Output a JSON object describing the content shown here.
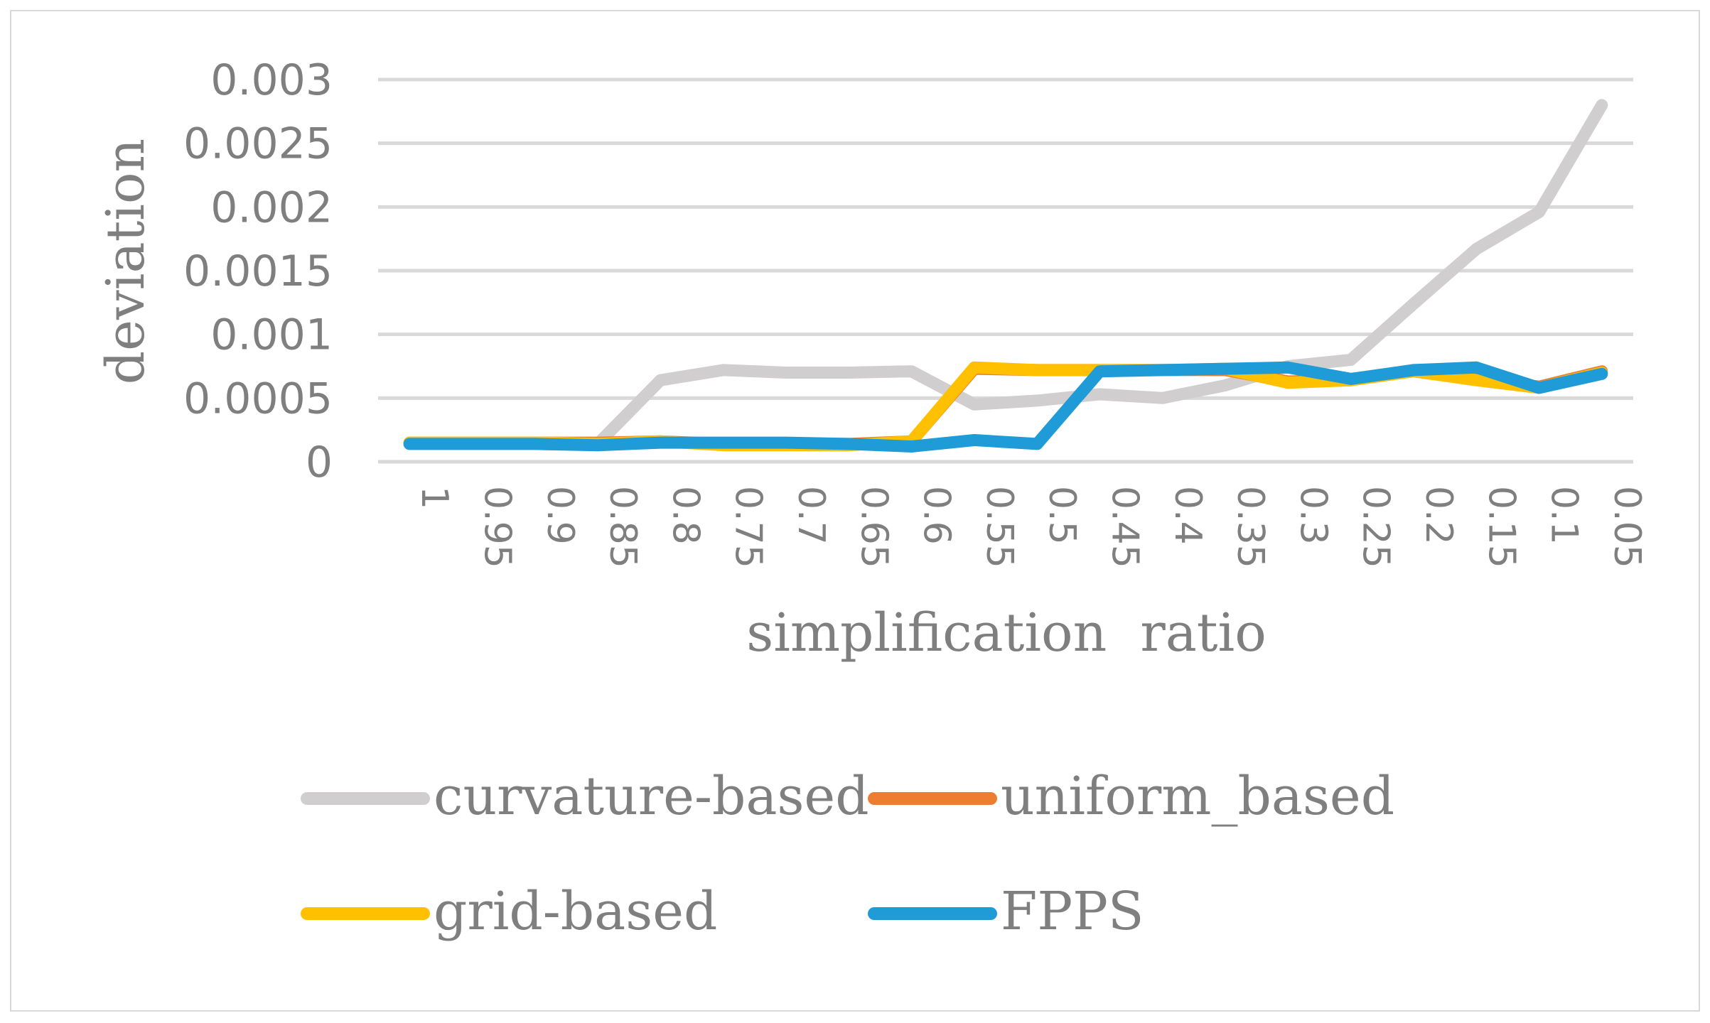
{
  "chart_data": {
    "type": "line",
    "xlabel": "simplification  ratio",
    "ylabel": "deviation",
    "categories": [
      "1",
      "0.95",
      "0.9",
      "0.85",
      "0.8",
      "0.75",
      "0.7",
      "0.65",
      "0.6",
      "0.55",
      "0.5",
      "0.45",
      "0.4",
      "0.35",
      "0.3",
      "0.25",
      "0.2",
      "0.15",
      "0.1",
      "0.05"
    ],
    "ylim": [
      0,
      0.003
    ],
    "yticks": [
      "0",
      "0.0005",
      "0.001",
      "0.0015",
      "0.002",
      "0.0025",
      "0.003"
    ],
    "grid": true,
    "legend_position": "bottom",
    "series": [
      {
        "name": "curvature-based",
        "color": "#d0cece",
        "values": [
          0.00014,
          0.00014,
          0.00014,
          0.00014,
          0.00064,
          0.00072,
          0.0007,
          0.0007,
          0.00071,
          0.00045,
          0.00048,
          0.00053,
          0.0005,
          0.0006,
          0.00075,
          0.0008,
          0.00124,
          0.00167,
          0.00196,
          0.0028
        ]
      },
      {
        "name": "uniform_based",
        "color": "#ed7d31",
        "values": [
          0.00015,
          0.00015,
          0.00015,
          0.00015,
          0.00016,
          0.00014,
          0.00014,
          0.00014,
          0.00016,
          0.00073,
          0.00072,
          0.00072,
          0.00072,
          0.00072,
          0.00063,
          0.00064,
          0.00072,
          0.00065,
          0.00059,
          0.00071
        ]
      },
      {
        "name": "grid-based",
        "color": "#ffc000",
        "values": [
          0.00015,
          0.00015,
          0.00015,
          0.00014,
          0.00016,
          0.00013,
          0.00013,
          0.00013,
          0.00016,
          0.00074,
          0.00072,
          0.00072,
          0.00072,
          0.00073,
          0.00062,
          0.00064,
          0.00071,
          0.00064,
          0.00058,
          0.0007
        ]
      },
      {
        "name": "FPPS",
        "color": "#1f9bd7",
        "values": [
          0.00014,
          0.00014,
          0.00014,
          0.00013,
          0.00015,
          0.00015,
          0.00015,
          0.00014,
          0.00012,
          0.00017,
          0.00014,
          0.00071,
          0.00072,
          0.00073,
          0.00074,
          0.00065,
          0.00072,
          0.00074,
          0.00058,
          0.00069
        ]
      }
    ]
  }
}
